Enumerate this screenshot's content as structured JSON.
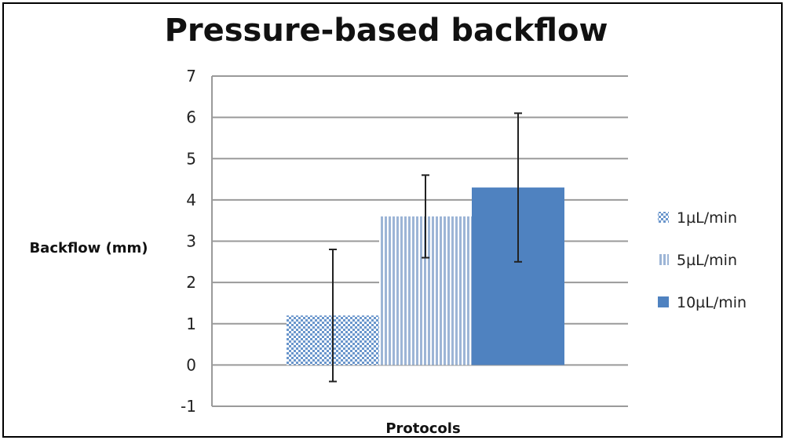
{
  "chart_data": {
    "type": "bar",
    "title": "Pressure-based backflow",
    "xlabel": "Protocols",
    "ylabel": "Backflow (mm)",
    "ylim": [
      -1,
      7
    ],
    "yticks": [
      -1,
      0,
      1,
      2,
      3,
      4,
      5,
      6,
      7
    ],
    "categories": [
      ""
    ],
    "grid": true,
    "legend_position": "right",
    "series": [
      {
        "name": "1µL/min",
        "values": [
          1.2
        ],
        "error_low": [
          -0.4
        ],
        "error_high": [
          2.8
        ],
        "color": "#6a96cc",
        "pattern": "checker"
      },
      {
        "name": "5µL/min",
        "values": [
          3.6
        ],
        "error_low": [
          2.6
        ],
        "error_high": [
          4.6
        ],
        "color": "#9db5d6",
        "pattern": "vertical-stripes"
      },
      {
        "name": "10µL/min",
        "values": [
          4.3
        ],
        "error_low": [
          2.5
        ],
        "error_high": [
          6.1
        ],
        "color": "#4f82c0",
        "pattern": "solid"
      }
    ]
  }
}
